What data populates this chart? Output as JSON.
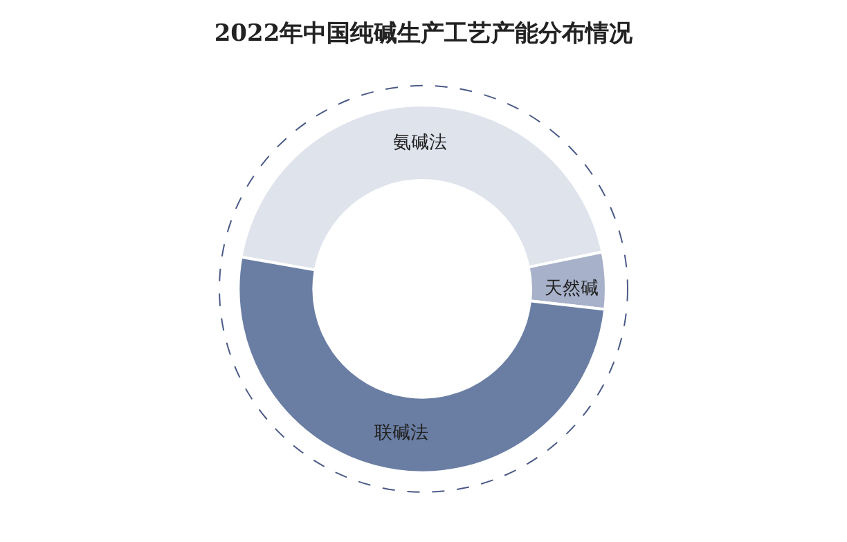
{
  "chart_data": {
    "type": "donut",
    "title": "2022年中国纯碱生产工艺产能分布情况",
    "categories": [
      "氨碱法",
      "天然碱",
      "联碱法"
    ],
    "values": [
      44,
      5,
      51
    ],
    "colors": [
      "#dfe3ec",
      "#a7b1c9",
      "#6a7ea4"
    ],
    "legend": false
  }
}
